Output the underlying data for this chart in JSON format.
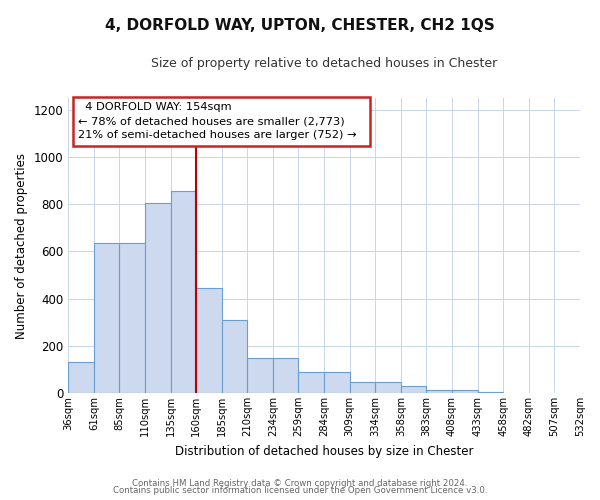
{
  "title": "4, DORFOLD WAY, UPTON, CHESTER, CH2 1QS",
  "subtitle": "Size of property relative to detached houses in Chester",
  "xlabel": "Distribution of detached houses by size in Chester",
  "ylabel": "Number of detached properties",
  "bar_values": [
    130,
    635,
    635,
    805,
    855,
    445,
    310,
    150,
    150,
    90,
    90,
    48,
    48,
    30,
    12,
    12,
    5
  ],
  "bin_labels": [
    "36sqm",
    "61sqm",
    "85sqm",
    "110sqm",
    "135sqm",
    "160sqm",
    "185sqm",
    "210sqm",
    "234sqm",
    "259sqm",
    "284sqm",
    "309sqm",
    "334sqm",
    "358sqm",
    "383sqm",
    "408sqm",
    "433sqm",
    "458sqm",
    "482sqm",
    "507sqm",
    "532sqm"
  ],
  "bar_color": "#ccd9ee",
  "bar_edge_color": "#6b9fd4",
  "vline_position": 5,
  "vline_color": "#bb0000",
  "annotation_title": "4 DORFOLD WAY: 154sqm",
  "annotation_line1": "← 78% of detached houses are smaller (2,773)",
  "annotation_line2": "21% of semi-detached houses are larger (752) →",
  "annotation_box_color": "#ffffff",
  "annotation_box_edge_color": "#cc2222",
  "ylim": [
    0,
    1250
  ],
  "yticks": [
    0,
    200,
    400,
    600,
    800,
    1000,
    1200
  ],
  "footer1": "Contains HM Land Registry data © Crown copyright and database right 2024.",
  "footer2": "Contains public sector information licensed under the Open Government Licence v3.0.",
  "background_color": "#ffffff",
  "grid_color": "#c8d4e8"
}
